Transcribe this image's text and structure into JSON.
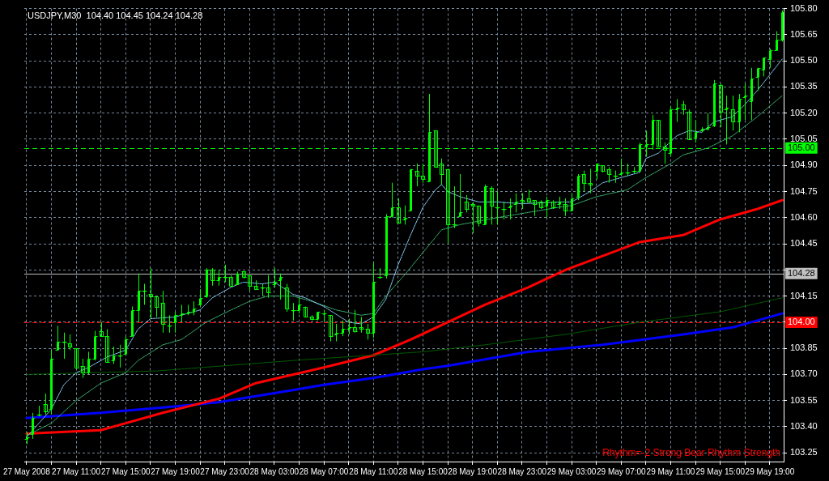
{
  "chart_data": {
    "type": "candlestick",
    "title": "USDJPY,M30  104.40 104.45 104.24 104.28",
    "annotations": [
      "Rhythm=-2 Strong Bear Rhythm Strength"
    ],
    "color": "#00ff00",
    "x": [
      "2008-05-27T07:00",
      "2008-05-27T07:30",
      "2008-05-27T08:00",
      "2008-05-27T08:30",
      "2008-05-27T09:00",
      "2008-05-27T09:30",
      "2008-05-27T10:00",
      "2008-05-27T10:30",
      "2008-05-27T11:00",
      "2008-05-27T11:30",
      "2008-05-27T12:00",
      "2008-05-27T12:30",
      "2008-05-27T13:00",
      "2008-05-27T13:30",
      "2008-05-27T14:00",
      "2008-05-27T14:30",
      "2008-05-27T15:00",
      "2008-05-27T15:30",
      "2008-05-27T16:00",
      "2008-05-27T16:30",
      "2008-05-27T17:00",
      "2008-05-27T17:30",
      "2008-05-27T18:00",
      "2008-05-27T18:30",
      "2008-05-27T19:00",
      "2008-05-27T19:30",
      "2008-05-27T20:00",
      "2008-05-27T20:30",
      "2008-05-27T21:00",
      "2008-05-27T21:30",
      "2008-05-27T22:00",
      "2008-05-27T22:30",
      "2008-05-27T23:00",
      "2008-05-27T23:30",
      "2008-05-28T00:00",
      "2008-05-28T00:30",
      "2008-05-28T01:00",
      "2008-05-28T01:30",
      "2008-05-28T02:00",
      "2008-05-28T02:30",
      "2008-05-28T03:00",
      "2008-05-28T03:30",
      "2008-05-28T04:00",
      "2008-05-28T04:30",
      "2008-05-28T05:00",
      "2008-05-28T05:30",
      "2008-05-28T06:00",
      "2008-05-28T06:30",
      "2008-05-28T07:00",
      "2008-05-28T07:30",
      "2008-05-28T08:00",
      "2008-05-28T08:30",
      "2008-05-28T09:00",
      "2008-05-28T09:30",
      "2008-05-28T10:00",
      "2008-05-28T10:30",
      "2008-05-28T11:00",
      "2008-05-28T11:30",
      "2008-05-28T12:00",
      "2008-05-28T12:30",
      "2008-05-28T13:00",
      "2008-05-28T13:30",
      "2008-05-28T14:00",
      "2008-05-28T14:30",
      "2008-05-28T15:00",
      "2008-05-28T15:30",
      "2008-05-28T16:00",
      "2008-05-28T16:30",
      "2008-05-28T17:00",
      "2008-05-28T17:30",
      "2008-05-28T18:00",
      "2008-05-28T18:30",
      "2008-05-28T19:00",
      "2008-05-28T19:30",
      "2008-05-28T20:00",
      "2008-05-28T20:30",
      "2008-05-28T21:00",
      "2008-05-28T21:30",
      "2008-05-28T22:00",
      "2008-05-28T22:30",
      "2008-05-28T23:00",
      "2008-05-28T23:30",
      "2008-05-29T00:00",
      "2008-05-29T00:30",
      "2008-05-29T01:00",
      "2008-05-29T01:30",
      "2008-05-29T02:00",
      "2008-05-29T02:30",
      "2008-05-29T03:00",
      "2008-05-29T03:30",
      "2008-05-29T04:00",
      "2008-05-29T04:30",
      "2008-05-29T05:00",
      "2008-05-29T05:30",
      "2008-05-29T06:00",
      "2008-05-29T06:30",
      "2008-05-29T07:00",
      "2008-05-29T07:30",
      "2008-05-29T08:00",
      "2008-05-29T08:30",
      "2008-05-29T09:00",
      "2008-05-29T09:30",
      "2008-05-29T10:00",
      "2008-05-29T10:30",
      "2008-05-29T11:00",
      "2008-05-29T11:30",
      "2008-05-29T12:00",
      "2008-05-29T12:30",
      "2008-05-29T13:00",
      "2008-05-29T13:30",
      "2008-05-29T14:00",
      "2008-05-29T14:30",
      "2008-05-29T15:00",
      "2008-05-29T15:30",
      "2008-05-29T16:00",
      "2008-05-29T16:30",
      "2008-05-29T17:00",
      "2008-05-29T17:30",
      "2008-05-29T18:00",
      "2008-05-29T18:30",
      "2008-05-29T19:00",
      "2008-05-29T19:30",
      "2008-05-29T20:00"
    ],
    "ohlc": [
      [
        103.33,
        103.37,
        103.3,
        103.34
      ],
      [
        103.36,
        103.48,
        103.33,
        103.45
      ],
      [
        103.47,
        103.52,
        103.46,
        103.47
      ],
      [
        103.53,
        103.59,
        103.47,
        103.49
      ],
      [
        103.5,
        103.84,
        103.47,
        103.79
      ],
      [
        103.84,
        103.98,
        103.84,
        103.89
      ],
      [
        103.89,
        103.94,
        103.79,
        103.89
      ],
      [
        103.88,
        103.93,
        103.84,
        103.86
      ],
      [
        103.85,
        103.85,
        103.74,
        103.74
      ],
      [
        103.75,
        103.79,
        103.68,
        103.71
      ],
      [
        103.71,
        103.83,
        103.7,
        103.79
      ],
      [
        103.79,
        103.95,
        103.78,
        103.92
      ],
      [
        103.95,
        104.0,
        103.92,
        103.92
      ],
      [
        103.92,
        103.96,
        103.77,
        103.77
      ],
      [
        103.78,
        103.86,
        103.76,
        103.81
      ],
      [
        103.81,
        103.87,
        103.74,
        103.81
      ],
      [
        103.82,
        103.92,
        103.82,
        103.9
      ],
      [
        103.92,
        104.09,
        103.92,
        104.07
      ],
      [
        104.07,
        104.28,
        104.0,
        104.18
      ],
      [
        104.18,
        104.22,
        104.1,
        104.18
      ],
      [
        104.16,
        104.31,
        104.02,
        104.15
      ],
      [
        104.15,
        104.15,
        104.03,
        104.09
      ],
      [
        104.11,
        104.18,
        103.94,
        103.99
      ],
      [
        103.98,
        104.04,
        103.94,
        103.98
      ],
      [
        104.0,
        104.06,
        103.94,
        104.04
      ],
      [
        104.04,
        104.1,
        104.0,
        104.05
      ],
      [
        104.05,
        104.1,
        104.04,
        104.06
      ],
      [
        104.06,
        104.12,
        104.04,
        104.08
      ],
      [
        104.1,
        104.19,
        104.09,
        104.14
      ],
      [
        104.15,
        104.31,
        104.14,
        104.3
      ],
      [
        104.3,
        104.31,
        104.21,
        104.24
      ],
      [
        104.24,
        104.3,
        104.21,
        104.26
      ],
      [
        104.26,
        104.33,
        104.23,
        104.26
      ],
      [
        104.26,
        104.27,
        104.21,
        104.21
      ],
      [
        104.22,
        104.29,
        104.22,
        104.28
      ],
      [
        104.29,
        104.29,
        104.25,
        104.26
      ],
      [
        104.27,
        104.27,
        104.18,
        104.21
      ],
      [
        104.21,
        104.24,
        104.19,
        104.19
      ],
      [
        104.2,
        104.22,
        104.15,
        104.2
      ],
      [
        104.2,
        104.27,
        104.14,
        104.17
      ],
      [
        104.22,
        104.31,
        104.2,
        104.23
      ],
      [
        104.24,
        104.28,
        104.13,
        104.26
      ],
      [
        104.2,
        104.22,
        104.06,
        104.08
      ],
      [
        104.07,
        104.11,
        104.01,
        104.07
      ],
      [
        104.07,
        104.14,
        104.05,
        104.1
      ],
      [
        104.09,
        104.09,
        104.03,
        104.03
      ],
      [
        104.03,
        104.04,
        104.01,
        104.02
      ],
      [
        104.02,
        104.06,
        104.01,
        104.06
      ],
      [
        104.05,
        104.07,
        104.0,
        104.05
      ],
      [
        104.04,
        104.04,
        103.89,
        103.92
      ],
      [
        103.93,
        103.99,
        103.89,
        103.94
      ],
      [
        103.94,
        104.01,
        103.92,
        103.96
      ],
      [
        103.96,
        104.02,
        103.93,
        103.97
      ],
      [
        103.97,
        104.07,
        103.94,
        103.95
      ],
      [
        103.97,
        104.03,
        103.94,
        103.96
      ],
      [
        103.96,
        103.99,
        103.9,
        103.94
      ],
      [
        103.94,
        104.34,
        103.91,
        104.23
      ],
      [
        104.26,
        104.31,
        104.25,
        104.26
      ],
      [
        104.27,
        104.62,
        104.25,
        104.61
      ],
      [
        104.61,
        104.8,
        104.6,
        104.66
      ],
      [
        104.66,
        104.71,
        104.57,
        104.57
      ],
      [
        104.59,
        104.67,
        104.56,
        104.6
      ],
      [
        104.64,
        104.88,
        104.64,
        104.88
      ],
      [
        104.87,
        104.91,
        104.78,
        104.84
      ],
      [
        104.84,
        104.91,
        104.8,
        104.82
      ],
      [
        104.81,
        105.31,
        104.81,
        105.09
      ],
      [
        105.1,
        105.1,
        104.89,
        104.89
      ],
      [
        104.91,
        104.94,
        104.79,
        104.85
      ],
      [
        104.88,
        104.88,
        104.45,
        104.56
      ],
      [
        104.56,
        104.78,
        104.54,
        104.56
      ],
      [
        104.61,
        104.85,
        104.61,
        104.63
      ],
      [
        104.69,
        104.73,
        104.63,
        104.65
      ],
      [
        104.68,
        104.69,
        104.51,
        104.67
      ],
      [
        104.67,
        104.67,
        104.55,
        104.57
      ],
      [
        104.56,
        104.79,
        104.56,
        104.78
      ],
      [
        104.77,
        104.78,
        104.56,
        104.67
      ],
      [
        104.66,
        104.75,
        104.56,
        104.66
      ],
      [
        104.65,
        104.69,
        104.59,
        104.65
      ],
      [
        104.66,
        104.71,
        104.59,
        104.67
      ],
      [
        104.68,
        104.74,
        104.63,
        104.69
      ],
      [
        104.7,
        104.74,
        104.65,
        104.69
      ],
      [
        104.71,
        104.76,
        104.69,
        104.69
      ],
      [
        104.7,
        104.7,
        104.61,
        104.68
      ],
      [
        104.69,
        104.7,
        104.65,
        104.66
      ],
      [
        104.67,
        104.72,
        104.6,
        104.7
      ],
      [
        104.69,
        104.7,
        104.65,
        104.66
      ],
      [
        104.68,
        104.72,
        104.65,
        104.69
      ],
      [
        104.68,
        104.71,
        104.61,
        104.64
      ],
      [
        104.64,
        104.74,
        104.64,
        104.71
      ],
      [
        104.72,
        104.85,
        104.7,
        104.84
      ],
      [
        104.85,
        104.87,
        104.75,
        104.8
      ],
      [
        104.8,
        104.88,
        104.74,
        104.79
      ],
      [
        104.87,
        104.91,
        104.82,
        104.91
      ],
      [
        104.9,
        104.9,
        104.86,
        104.87
      ],
      [
        104.88,
        104.89,
        104.8,
        104.85
      ],
      [
        104.84,
        104.87,
        104.8,
        104.84
      ],
      [
        104.85,
        104.94,
        104.84,
        104.86
      ],
      [
        104.86,
        104.91,
        104.84,
        104.86
      ],
      [
        104.87,
        104.89,
        104.85,
        104.87
      ],
      [
        104.87,
        105.03,
        104.87,
        105.02
      ],
      [
        105.01,
        105.1,
        104.95,
        105.02
      ],
      [
        105.02,
        105.19,
        104.99,
        105.16
      ],
      [
        105.16,
        105.16,
        105.01,
        105.01
      ],
      [
        105.01,
        105.03,
        104.91,
        104.99
      ],
      [
        104.97,
        105.24,
        104.95,
        105.22
      ],
      [
        105.22,
        105.28,
        105.15,
        105.23
      ],
      [
        105.25,
        105.27,
        105.19,
        105.22
      ],
      [
        105.21,
        105.22,
        105.05,
        105.05
      ],
      [
        105.06,
        105.16,
        105.03,
        105.09
      ],
      [
        105.1,
        105.12,
        105.09,
        105.11
      ],
      [
        105.11,
        105.2,
        105.1,
        105.12
      ],
      [
        105.13,
        105.39,
        105.12,
        105.37
      ],
      [
        105.36,
        105.37,
        105.12,
        105.21
      ],
      [
        105.22,
        105.3,
        105.02,
        105.23
      ],
      [
        105.22,
        105.3,
        105.1,
        105.15
      ],
      [
        105.15,
        105.31,
        105.09,
        105.28
      ],
      [
        105.29,
        105.37,
        105.16,
        105.3
      ],
      [
        105.27,
        105.46,
        105.16,
        105.4
      ],
      [
        105.41,
        105.46,
        105.33,
        105.46
      ],
      [
        105.45,
        105.52,
        105.41,
        105.52
      ],
      [
        105.51,
        105.57,
        105.46,
        105.56
      ],
      [
        105.56,
        105.67,
        105.56,
        105.62
      ],
      [
        105.62,
        105.79,
        105.61,
        105.78
      ]
    ],
    "series": [
      {
        "type": "line",
        "color": "#87cefa",
        "line_style": "dotted",
        "x": [
          "2008-05-27T07:00",
          "2008-05-27T09:00",
          "2008-05-27T10:00",
          "2008-05-27T11:00",
          "2008-05-27T12:00",
          "2008-05-27T13:30",
          "2008-05-27T15:00",
          "2008-05-27T16:00",
          "2008-05-27T17:00",
          "2008-05-27T19:00",
          "2008-05-27T21:00",
          "2008-05-27T22:00",
          "2008-05-27T23:30",
          "2008-05-28T00:30",
          "2008-05-28T02:00",
          "2008-05-28T03:00",
          "2008-05-28T04:30",
          "2008-05-28T05:30",
          "2008-05-28T07:00",
          "2008-05-28T09:00",
          "2008-05-28T10:00",
          "2008-05-28T11:00",
          "2008-05-28T12:00",
          "2008-05-28T13:00",
          "2008-05-28T14:00",
          "2008-05-28T15:00",
          "2008-05-28T16:00",
          "2008-05-28T16:30",
          "2008-05-28T17:00",
          "2008-05-28T18:00",
          "2008-05-28T19:30",
          "2008-05-28T21:00",
          "2008-05-28T23:00",
          "2008-05-29T02:00",
          "2008-05-29T03:00",
          "2008-05-29T04:30",
          "2008-05-29T05:30",
          "2008-05-29T07:00",
          "2008-05-29T08:30",
          "2008-05-29T09:00",
          "2008-05-29T10:00",
          "2008-05-29T11:30",
          "2008-05-29T12:30",
          "2008-05-29T13:30",
          "2008-05-29T14:30",
          "2008-05-29T16:00",
          "2008-05-29T17:00",
          "2008-05-29T18:00",
          "2008-05-29T19:00",
          "2008-05-29T20:00"
        ],
        "values": [
          103.34,
          103.5,
          103.64,
          103.71,
          103.74,
          103.8,
          103.84,
          103.96,
          104.02,
          104.03,
          104.07,
          104.14,
          104.2,
          104.23,
          104.22,
          104.23,
          104.16,
          104.14,
          104.09,
          104.0,
          103.99,
          104.03,
          104.13,
          104.33,
          104.5,
          104.66,
          104.76,
          104.79,
          104.75,
          104.72,
          104.69,
          104.69,
          104.68,
          104.69,
          104.69,
          104.75,
          104.8,
          104.83,
          104.86,
          104.94,
          104.97,
          105.07,
          105.1,
          105.09,
          105.15,
          105.18,
          105.25,
          105.33,
          105.42,
          105.51
        ]
      },
      {
        "type": "line",
        "color": "#3cb371",
        "line_style": "dotted",
        "x": [
          "2008-05-27T07:00",
          "2008-05-27T09:00",
          "2008-05-27T11:00",
          "2008-05-27T13:00",
          "2008-05-27T15:00",
          "2008-05-27T16:00",
          "2008-05-27T18:00",
          "2008-05-27T19:30",
          "2008-05-27T21:30",
          "2008-05-27T23:30",
          "2008-05-28T01:00",
          "2008-05-28T02:30",
          "2008-05-28T04:30",
          "2008-05-28T06:00",
          "2008-05-28T08:00",
          "2008-05-28T10:00",
          "2008-05-28T11:00",
          "2008-05-28T12:00",
          "2008-05-28T13:30",
          "2008-05-28T15:00",
          "2008-05-28T16:30",
          "2008-05-28T18:00",
          "2008-05-28T21:00",
          "2008-05-28T23:30",
          "2008-05-29T02:00",
          "2008-05-29T03:00",
          "2008-05-29T05:00",
          "2008-05-29T07:30",
          "2008-05-29T09:00",
          "2008-05-29T11:00",
          "2008-05-29T12:00",
          "2008-05-29T14:00",
          "2008-05-29T16:00",
          "2008-05-29T18:00",
          "2008-05-29T20:00"
        ],
        "values": [
          103.35,
          103.42,
          103.55,
          103.65,
          103.71,
          103.78,
          103.87,
          103.9,
          104.0,
          104.07,
          104.12,
          104.15,
          104.15,
          104.12,
          104.07,
          104.04,
          104.05,
          104.15,
          104.27,
          104.4,
          104.53,
          104.56,
          104.6,
          104.63,
          104.66,
          104.67,
          104.72,
          104.76,
          104.83,
          104.91,
          104.96,
          105.0,
          105.07,
          105.18,
          105.3
        ]
      },
      {
        "type": "line",
        "color": "#006400",
        "line_style": "dotted",
        "x": [
          "2008-05-27T07:00",
          "2008-05-27T17:30",
          "2008-05-28T04:30",
          "2008-05-28T15:00",
          "2008-05-28T20:00",
          "2008-05-29T02:30",
          "2008-05-29T08:30",
          "2008-05-29T15:00",
          "2008-05-29T20:00"
        ],
        "values": [
          103.7,
          103.72,
          103.78,
          103.83,
          103.87,
          103.93,
          104.0,
          104.06,
          104.14
        ]
      },
      {
        "type": "line",
        "color": "#ff0000",
        "line_style": "solid",
        "x": [
          "2008-05-27T07:00",
          "2008-05-27T13:00",
          "2008-05-27T15:00",
          "2008-05-27T18:00",
          "2008-05-27T22:30",
          "2008-05-28T01:30",
          "2008-05-28T07:00",
          "2008-05-28T11:00",
          "2008-05-28T14:00",
          "2008-05-28T17:00",
          "2008-05-28T20:00",
          "2008-05-28T23:30",
          "2008-05-29T02:30",
          "2008-05-29T05:30",
          "2008-05-29T08:30",
          "2008-05-29T12:00",
          "2008-05-29T15:00",
          "2008-05-29T18:00",
          "2008-05-29T20:00"
        ],
        "values": [
          103.36,
          103.38,
          103.42,
          103.48,
          103.56,
          103.65,
          103.74,
          103.81,
          103.9,
          104.0,
          104.1,
          104.2,
          104.3,
          104.38,
          104.46,
          104.5,
          104.59,
          104.65,
          104.7
        ]
      },
      {
        "type": "line",
        "color": "#0000ff",
        "line_style": "solid",
        "x": [
          "2008-05-27T07:00",
          "2008-05-27T13:00",
          "2008-05-27T18:00",
          "2008-05-27T22:30",
          "2008-05-28T04:30",
          "2008-05-28T07:00",
          "2008-05-28T11:00",
          "2008-05-28T15:00",
          "2008-05-28T17:00",
          "2008-05-28T23:30",
          "2008-05-29T05:30",
          "2008-05-29T12:00",
          "2008-05-29T16:00",
          "2008-05-29T20:00"
        ],
        "values": [
          103.45,
          103.48,
          103.51,
          103.54,
          103.61,
          103.64,
          103.68,
          103.73,
          103.75,
          103.83,
          103.87,
          103.93,
          103.97,
          104.05
        ]
      }
    ],
    "ylim": [
      103.2,
      105.8
    ],
    "yticks": [
      {
        "value": 105.8,
        "label": "105.80"
      },
      105.65,
      {
        "value": 105.5,
        "label": "105.50"
      },
      105.35,
      {
        "value": 105.2,
        "label": "105.20"
      },
      105.05,
      {
        "value": 104.9,
        "label": "104.90"
      },
      104.75,
      {
        "value": 104.6,
        "label": "104.60"
      },
      104.45,
      {
        "value": 104.3,
        "label": null
      },
      104.15,
      {
        "value": 104.0,
        "label": null
      },
      103.85,
      {
        "value": 103.7,
        "label": "103.70"
      },
      103.55,
      {
        "value": 103.4,
        "label": "103.40"
      },
      103.25
    ],
    "xlim": [
      "2008-05-27T06:49",
      "2008-05-29T20:07"
    ],
    "xticks": [
      {
        "value": "2008-05-27T07:00",
        "label": "27 May 2008"
      },
      {
        "value": "2008-05-27T09:00",
        "label": null
      },
      {
        "value": "2008-05-27T11:00",
        "label": "27 May 11:00"
      },
      {
        "value": "2008-05-27T13:00",
        "label": null
      },
      {
        "value": "2008-05-27T15:00",
        "label": "27 May 15:00"
      },
      {
        "value": "2008-05-27T17:00",
        "label": null
      },
      {
        "value": "2008-05-27T19:00",
        "label": "27 May 19:00"
      },
      {
        "value": "2008-05-27T21:00",
        "label": null
      },
      {
        "value": "2008-05-27T23:00",
        "label": "27 May 23:00"
      },
      {
        "value": "2008-05-28T01:00",
        "label": null
      },
      {
        "value": "2008-05-28T03:00",
        "label": "28 May 03:00"
      },
      {
        "value": "2008-05-28T05:00",
        "label": null
      },
      {
        "value": "2008-05-28T07:00",
        "label": "28 May 07:00"
      },
      {
        "value": "2008-05-28T09:00",
        "label": null
      },
      {
        "value": "2008-05-28T11:00",
        "label": "28 May 11:00"
      },
      {
        "value": "2008-05-28T13:00",
        "label": null
      },
      {
        "value": "2008-05-28T15:00",
        "label": "28 May 15:00"
      },
      {
        "value": "2008-05-28T17:00",
        "label": null
      },
      {
        "value": "2008-05-28T19:00",
        "label": "28 May 19:00"
      },
      {
        "value": "2008-05-28T21:00",
        "label": null
      },
      {
        "value": "2008-05-28T23:00",
        "label": "28 May 23:00"
      },
      {
        "value": "2008-05-29T01:00",
        "label": null
      },
      {
        "value": "2008-05-29T03:00",
        "label": "29 May 03:00"
      },
      {
        "value": "2008-05-29T05:00",
        "label": null
      },
      {
        "value": "2008-05-29T07:00",
        "label": "29 May 07:00"
      },
      {
        "value": "2008-05-29T09:00",
        "label": null
      },
      {
        "value": "2008-05-29T11:00",
        "label": "29 May 11:00"
      },
      {
        "value": "2008-05-29T13:00",
        "label": null
      },
      {
        "value": "2008-05-29T15:00",
        "label": "29 May 15:00"
      },
      {
        "value": "2008-05-29T17:00",
        "label": null
      },
      {
        "value": "2008-05-29T19:00",
        "label": "29 May 19:00"
      }
    ],
    "ref_lines": [
      {
        "axis": "y",
        "value": 105.0,
        "label": "105.00",
        "color": "#00ff00",
        "line_style": "dashed"
      },
      {
        "axis": "y",
        "value": 104.28,
        "label": "104.28",
        "color": "#c0c0c0",
        "line_style": "solid"
      },
      {
        "axis": "y",
        "value": 104.0,
        "label": "104.00",
        "color": "#ff0000",
        "line_style": "dashed"
      }
    ],
    "grid": true
  }
}
